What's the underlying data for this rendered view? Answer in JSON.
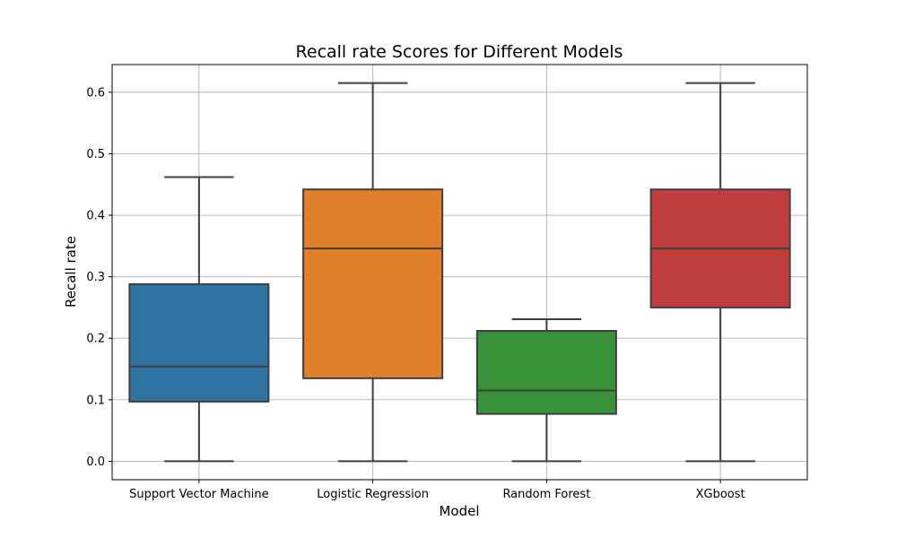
{
  "chart_data": {
    "type": "box",
    "title": "Recall rate Scores for Different Models",
    "xlabel": "Model",
    "ylabel": "Recall rate",
    "ylim": [
      -0.03,
      0.645
    ],
    "yticks": [
      "0.0",
      "0.1",
      "0.2",
      "0.3",
      "0.4",
      "0.5",
      "0.6"
    ],
    "grid": true,
    "categories": [
      "Support Vector Machine",
      "Logistic Regression",
      "Random Forest",
      "XGboost"
    ],
    "boxes": [
      {
        "category": "Support Vector Machine",
        "whisker_low": 0.0,
        "q1": 0.097,
        "median": 0.154,
        "q3": 0.288,
        "whisker_high": 0.462,
        "color": "#3274a1"
      },
      {
        "category": "Logistic Regression",
        "whisker_low": 0.0,
        "q1": 0.135,
        "median": 0.346,
        "q3": 0.442,
        "whisker_high": 0.615,
        "color": "#e1812c"
      },
      {
        "category": "Random Forest",
        "whisker_low": 0.0,
        "q1": 0.077,
        "median": 0.115,
        "q3": 0.212,
        "whisker_high": 0.231,
        "color": "#3a923a"
      },
      {
        "category": "XGboost",
        "whisker_low": 0.0,
        "q1": 0.25,
        "median": 0.346,
        "q3": 0.442,
        "whisker_high": 0.615,
        "color": "#c03d3e"
      }
    ]
  }
}
